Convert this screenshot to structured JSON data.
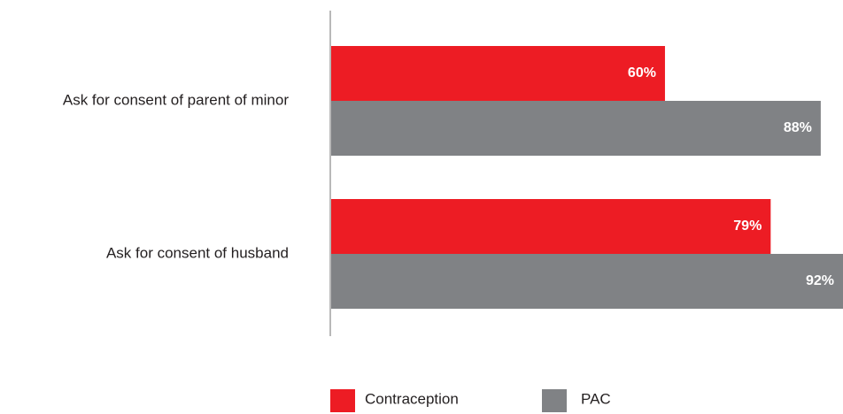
{
  "chart_data": {
    "type": "bar",
    "orientation": "horizontal",
    "categories": [
      "Ask for consent of parent of minor",
      "Ask for consent of husband"
    ],
    "series": [
      {
        "name": "Contraception",
        "values": [
          60,
          79
        ],
        "labels": [
          "60%",
          "79%"
        ],
        "color": "#ed1c24"
      },
      {
        "name": "PAC",
        "values": [
          88,
          92
        ],
        "labels": [
          "88%",
          "92%"
        ],
        "color": "#808285"
      }
    ],
    "xlim": [
      0,
      92
    ],
    "unit": "%",
    "grid": false,
    "legend_position": "bottom"
  }
}
